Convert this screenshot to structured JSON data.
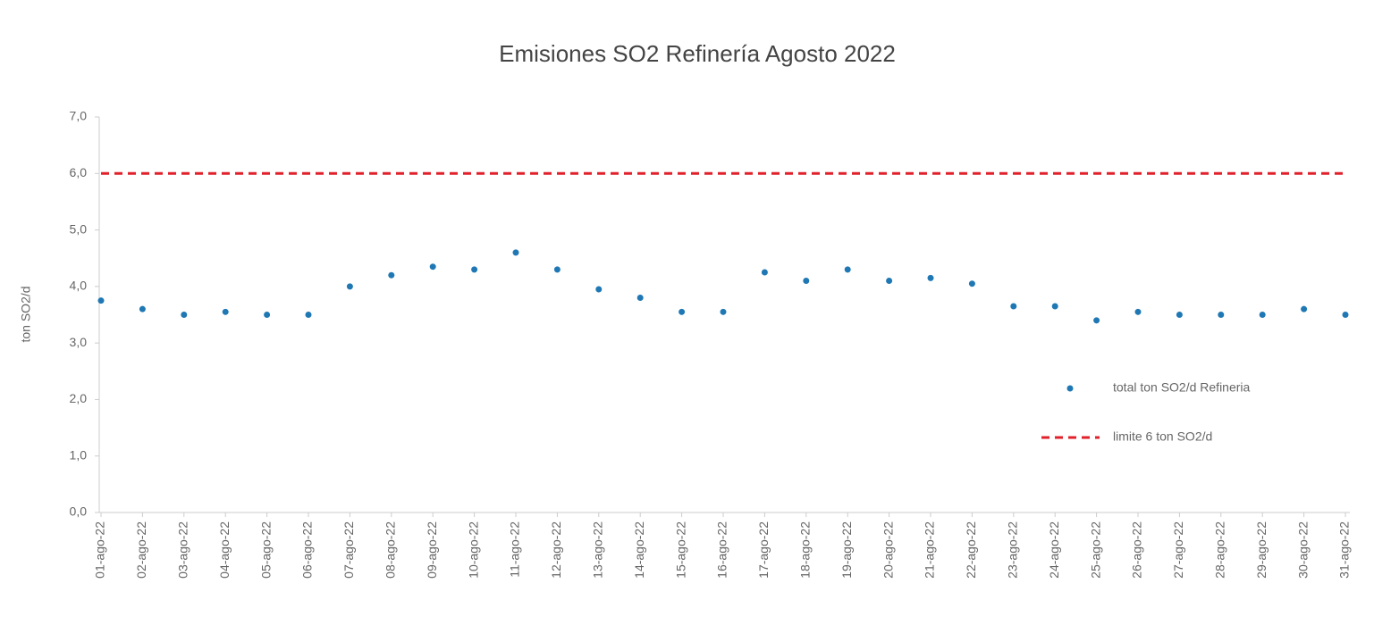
{
  "chart_data": {
    "type": "line",
    "title": "Emisiones SO2 Refinería Agosto 2022",
    "y_label": "ton SO2/d",
    "categories": [
      "01-ago-22",
      "02-ago-22",
      "03-ago-22",
      "04-ago-22",
      "05-ago-22",
      "06-ago-22",
      "07-ago-22",
      "08-ago-22",
      "09-ago-22",
      "10-ago-22",
      "11-ago-22",
      "12-ago-22",
      "13-ago-22",
      "14-ago-22",
      "15-ago-22",
      "16-ago-22",
      "17-ago-22",
      "18-ago-22",
      "19-ago-22",
      "20-ago-22",
      "21-ago-22",
      "22-ago-22",
      "23-ago-22",
      "24-ago-22",
      "25-ago-22",
      "26-ago-22",
      "27-ago-22",
      "28-ago-22",
      "29-ago-22",
      "30-ago-22",
      "31-ago-22"
    ],
    "series": [
      {
        "name": "total ton SO2/d Refineria",
        "color": "#1f78b4",
        "mark": "dot",
        "values": [
          3.75,
          3.6,
          3.5,
          3.55,
          3.5,
          3.5,
          4.0,
          4.2,
          4.35,
          4.3,
          4.6,
          4.3,
          3.95,
          3.8,
          3.55,
          3.55,
          4.25,
          4.1,
          4.3,
          4.1,
          4.15,
          4.05,
          3.65,
          3.65,
          3.4,
          3.55,
          3.5,
          3.5,
          3.5,
          3.6,
          3.5
        ]
      },
      {
        "name": "limite 6 ton SO2/d",
        "color": "#e0202a",
        "mark": "dashed",
        "values": [
          6,
          6,
          6,
          6,
          6,
          6,
          6,
          6,
          6,
          6,
          6,
          6,
          6,
          6,
          6,
          6,
          6,
          6,
          6,
          6,
          6,
          6,
          6,
          6,
          6,
          6,
          6,
          6,
          6,
          6,
          6
        ]
      }
    ],
    "ylim": [
      0,
      7
    ],
    "yticks": [
      {
        "value": 0,
        "label": "0,0"
      },
      {
        "value": 1,
        "label": "1,0"
      },
      {
        "value": 2,
        "label": "2,0"
      },
      {
        "value": 3,
        "label": "3,0"
      },
      {
        "value": 4,
        "label": "4,0"
      },
      {
        "value": 5,
        "label": "5,0"
      },
      {
        "value": 6,
        "label": "6,0"
      },
      {
        "value": 7,
        "label": "7,0"
      }
    ]
  }
}
